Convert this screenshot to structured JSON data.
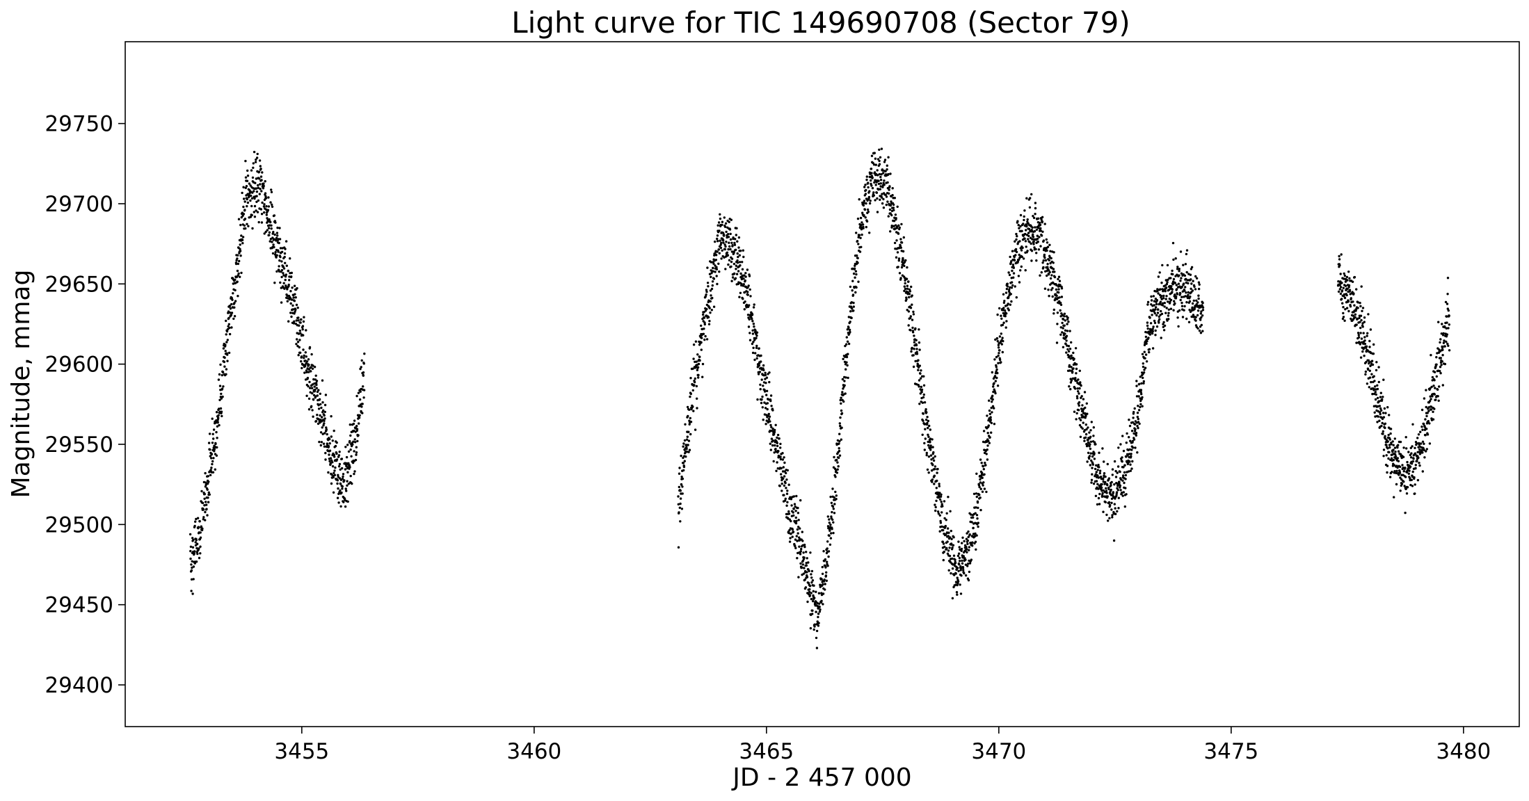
{
  "chart_data": {
    "type": "scatter",
    "title": "Light curve for TIC 149690708 (Sector 79)",
    "xlabel": "JD - 2 457 000",
    "ylabel": "Magnitude, mmag",
    "xlim": [
      3451.2,
      3481.2
    ],
    "ylim": [
      29374,
      29801
    ],
    "x_ticks": [
      3455,
      3460,
      3465,
      3470,
      3475,
      3480
    ],
    "x_tick_labels": [
      "3455",
      "3460",
      "3465",
      "3470",
      "3475",
      "3480"
    ],
    "y_ticks": [
      29400,
      29450,
      29500,
      29550,
      29600,
      29650,
      29700,
      29750
    ],
    "y_tick_labels": [
      "29400",
      "29450",
      "29500",
      "29550",
      "29600",
      "29650",
      "29700",
      "29750"
    ],
    "grid": false,
    "marker_color": "#000000",
    "series_trend": [
      {
        "x": [
          3452.6,
          3452.9,
          3453.2,
          3453.5,
          3453.8,
          3454.1,
          3454.4,
          3454.7,
          3455.0,
          3455.3,
          3455.6,
          3455.9,
          3456.2,
          3456.35
        ],
        "y": [
          29470,
          29510,
          29570,
          29640,
          29705,
          29710,
          29680,
          29650,
          29615,
          29580,
          29545,
          29525,
          29560,
          29595
        ]
      },
      {
        "x": [
          3463.1,
          3463.4,
          3463.7,
          3464.0,
          3464.3,
          3464.6,
          3464.9,
          3465.2,
          3465.5,
          3465.8,
          3466.1,
          3466.4,
          3466.7,
          3467.0,
          3467.3,
          3467.6,
          3467.9,
          3468.2,
          3468.5,
          3468.8,
          3469.1,
          3469.4,
          3469.7,
          3470.0,
          3470.3,
          3470.6,
          3470.9,
          3471.2,
          3471.5,
          3471.8,
          3472.1,
          3472.4,
          3472.7,
          3473.0,
          3473.2,
          3473.5,
          3473.8,
          3474.1,
          3474.4
        ],
        "y": [
          29510,
          29580,
          29630,
          29680,
          29670,
          29640,
          29590,
          29550,
          29510,
          29480,
          29440,
          29500,
          29600,
          29680,
          29720,
          29710,
          29670,
          29610,
          29550,
          29500,
          29470,
          29490,
          29540,
          29610,
          29660,
          29685,
          29680,
          29650,
          29610,
          29570,
          29530,
          29515,
          29530,
          29570,
          29620,
          29640,
          29650,
          29645,
          29630
        ]
      },
      {
        "x": [
          3477.3,
          3477.6,
          3477.9,
          3478.2,
          3478.5,
          3478.8,
          3479.1,
          3479.4,
          3479.7
        ],
        "y": [
          29650,
          29640,
          29610,
          29570,
          29540,
          29530,
          29550,
          29590,
          29630
        ]
      }
    ],
    "scatter_amplitude_mmag": 30
  }
}
